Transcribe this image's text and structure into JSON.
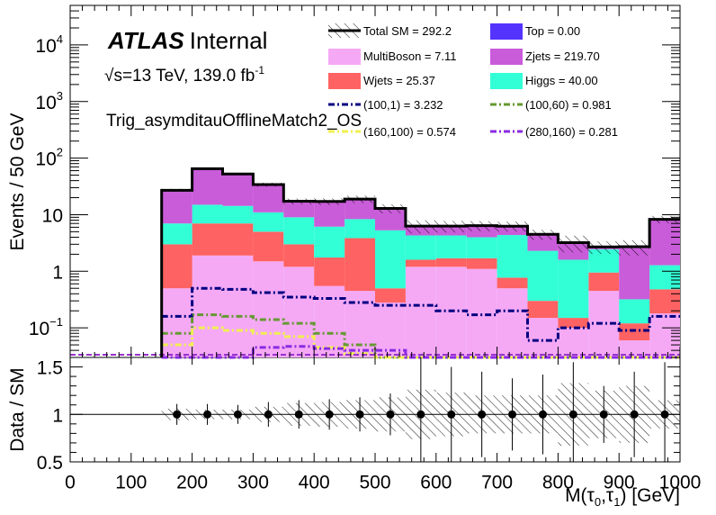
{
  "chart_data": {
    "type": "stacked-histogram-with-ratio",
    "labels": {
      "experiment": "ATLAS",
      "status": "Internal",
      "energy_prefix": "s",
      "energy_text": "=13 TeV, 139.0 fb",
      "lumi_exp": "-1",
      "region": "Trig_asymditauOfflineMatch2_OS"
    },
    "x_axis": {
      "label_text": "M(τ",
      "label_sub0": "0",
      "label_mid": ",τ",
      "label_sub1": "1",
      "label_end": ") [GeV]",
      "range": [
        0,
        1000
      ],
      "ticks": [
        "0",
        "100",
        "200",
        "300",
        "400",
        "500",
        "600",
        "700",
        "800",
        "900",
        "1000"
      ]
    },
    "top_panel": {
      "ylabel": "Events / 50 GeV",
      "scale": "log",
      "range": [
        0.03,
        50000
      ],
      "ticks": [
        {
          "value": 0.1,
          "base": "10",
          "exp": "−1"
        },
        {
          "value": 1,
          "base": "1",
          "exp": ""
        },
        {
          "value": 10,
          "base": "10",
          "exp": ""
        },
        {
          "value": 100,
          "base": "10",
          "exp": "2"
        },
        {
          "value": 1000,
          "base": "10",
          "exp": "3"
        },
        {
          "value": 10000,
          "base": "10",
          "exp": "4"
        }
      ]
    },
    "bottom_panel": {
      "ylabel": "Data / SM",
      "range": [
        0.5,
        1.6
      ],
      "ticks": [
        "0.5",
        "1",
        "1.5"
      ]
    },
    "bin_edges": [
      150,
      200,
      250,
      300,
      350,
      400,
      450,
      500,
      550,
      600,
      650,
      700,
      750,
      800,
      850,
      900,
      950,
      1000
    ],
    "stack": [
      {
        "name": "MultiBoson",
        "legend": "MultiBoson = 7.11",
        "color": "#f5a9f5",
        "values": [
          0.5,
          1.9,
          1.9,
          1.5,
          1.2,
          0.55,
          0.45,
          0.28,
          1.2,
          1.2,
          1.1,
          0.5,
          0.15,
          0.1,
          0.45,
          0.06,
          0.18
        ]
      },
      {
        "name": "Wjets",
        "legend": "Wjets = 25.37",
        "color": "#ff6262",
        "values": [
          2.5,
          5.1,
          5.1,
          3.5,
          1.8,
          1.2,
          3.4,
          0.22,
          0.4,
          0.5,
          0.6,
          0.27,
          0.15,
          0.05,
          0.5,
          0.06,
          0.3
        ]
      },
      {
        "name": "Higgs",
        "legend": "Higgs = 40.00",
        "color": "#33ffd6",
        "values": [
          4.0,
          8.0,
          7.3,
          6.0,
          6.0,
          4.4,
          4.5,
          4.8,
          2.7,
          2.6,
          2.3,
          3.6,
          2.0,
          1.45,
          1.5,
          0.2,
          0.8
        ]
      },
      {
        "name": "Zjets",
        "legend": "Zjets = 219.70",
        "color": "#c95cd9",
        "values": [
          20.0,
          50.0,
          38.0,
          23.0,
          8.3,
          11.0,
          10.5,
          7.6,
          2.0,
          2.0,
          2.4,
          1.9,
          2.2,
          1.6,
          0.25,
          2.4,
          7.0
        ]
      },
      {
        "name": "Top",
        "legend": "Top = 0.00",
        "color": "#5533ff",
        "values": [
          0,
          0,
          0,
          0,
          0,
          0,
          0,
          0,
          0,
          0,
          0,
          0,
          0,
          0,
          0,
          0,
          0
        ]
      }
    ],
    "total_sm": {
      "legend": "Total SM = 292.2"
    },
    "signals": [
      {
        "name": "(100,1)",
        "legend": "(100,1) = 3.232",
        "color": "#000080",
        "values": [
          0.16,
          0.5,
          0.48,
          0.42,
          0.35,
          0.33,
          0.28,
          0.25,
          0.25,
          0.2,
          0.17,
          0.2,
          0.06,
          0.1,
          0.12,
          0.09,
          0.16
        ]
      },
      {
        "name": "(100,60)",
        "legend": "(100,60) = 0.981",
        "color": "#669933",
        "values": [
          0.08,
          0.17,
          0.16,
          0.14,
          0.12,
          0.08,
          0.05,
          0.02,
          0.01,
          0.01,
          0.01,
          0.01,
          0.01,
          0.01,
          0.01,
          0.01,
          0.01
        ]
      },
      {
        "name": "(160,100)",
        "legend": "(160,100) = 0.574",
        "color": "#f0f050",
        "values": [
          0.05,
          0.1,
          0.09,
          0.08,
          0.07,
          0.045,
          0.035,
          0.02,
          0.01,
          0.01,
          0.01,
          0.01,
          0.01,
          0.01,
          0.01,
          0.01,
          0.01
        ]
      },
      {
        "name": "(280,160)",
        "legend": "(280,160) = 0.281",
        "color": "#8a2be2",
        "values": [
          0.01,
          0.01,
          0.025,
          0.045,
          0.047,
          0.043,
          0.04,
          0.04,
          0.03,
          0.02,
          0.02,
          0.015,
          0.015,
          0.01,
          0.01,
          0.01,
          0.01
        ]
      }
    ],
    "ratio_points": [
      1,
      1,
      1,
      1,
      1,
      1,
      1,
      1,
      1,
      1,
      1,
      1,
      1,
      1,
      1,
      1,
      1
    ],
    "ratio_errors": [
      0.11,
      0.11,
      0.1,
      0.13,
      0.15,
      0.16,
      0.18,
      0.22,
      0.65,
      0.5,
      0.45,
      0.38,
      0.42,
      0.55,
      0.3,
      0.45,
      0.55
    ],
    "sm_band": [
      0.06,
      0.05,
      0.05,
      0.08,
      0.12,
      0.13,
      0.15,
      0.18,
      0.26,
      0.23,
      0.2,
      0.2,
      0.2,
      0.33,
      0.25,
      0.3,
      0.15
    ]
  }
}
